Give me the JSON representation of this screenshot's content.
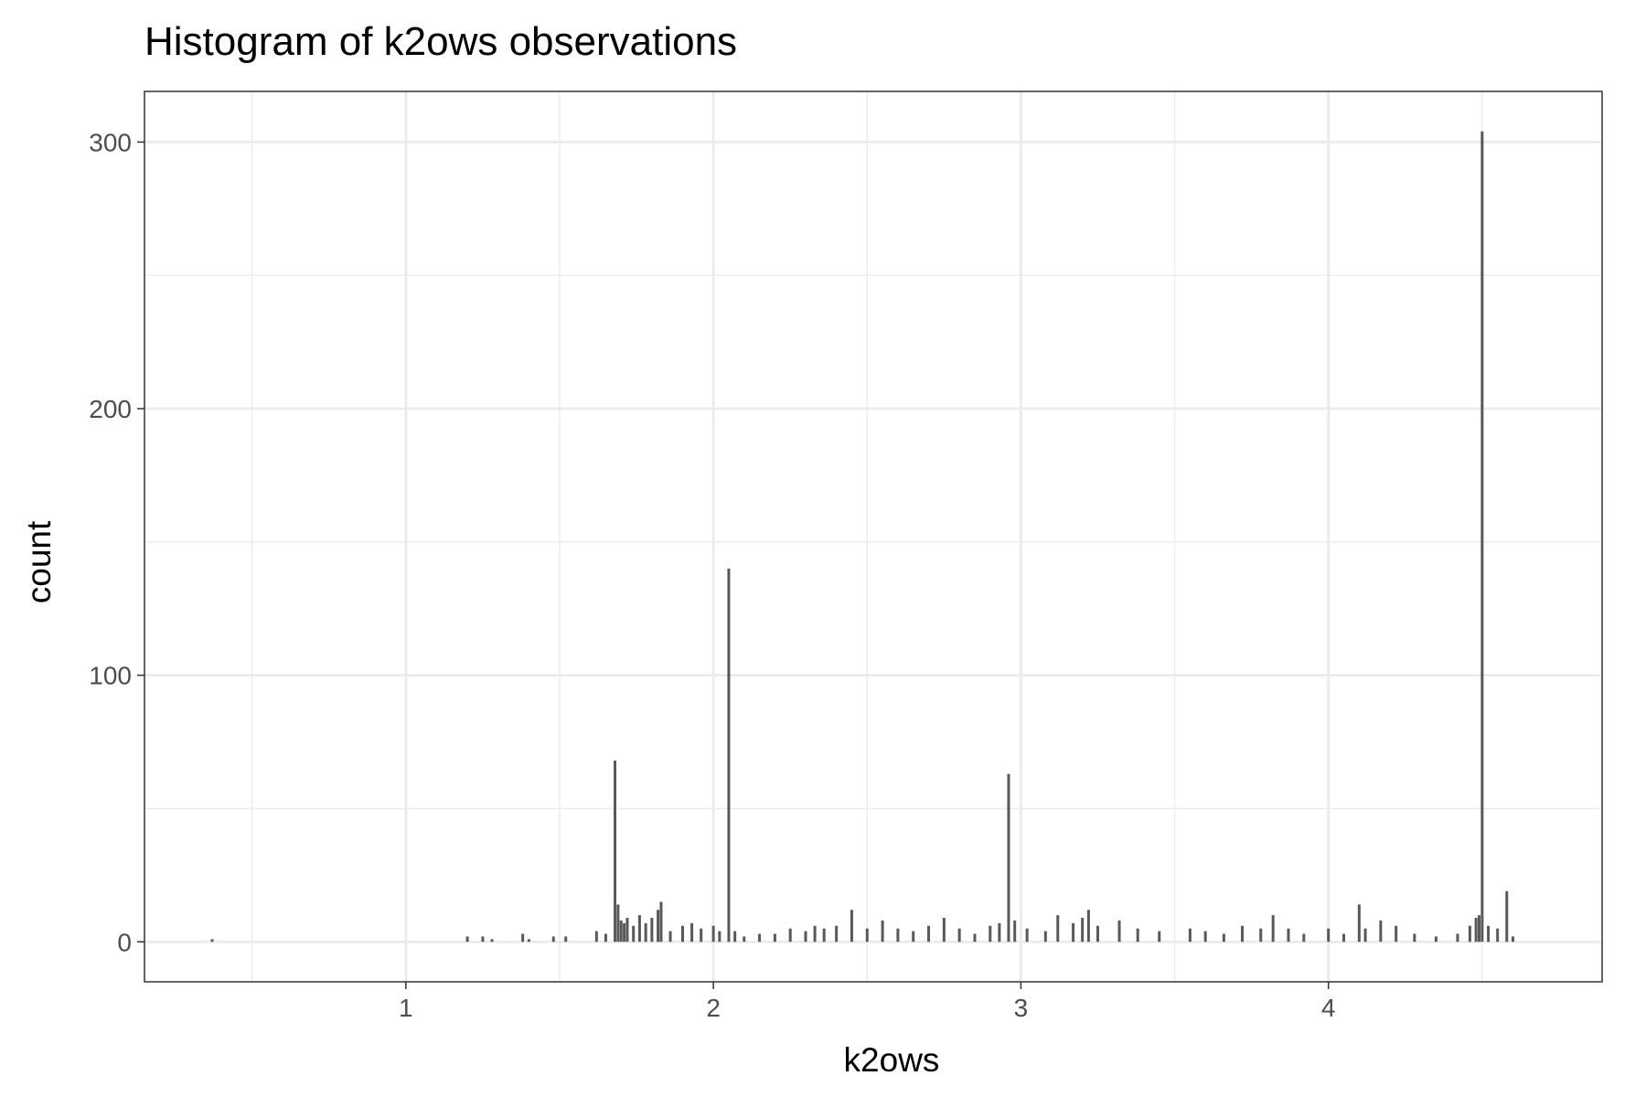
{
  "chart_data": {
    "type": "bar",
    "title": "Histogram of k2ows observations",
    "xlabel": "k2ows",
    "ylabel": "count",
    "xlim": [
      0.15,
      4.89
    ],
    "ylim": [
      -15,
      319
    ],
    "x_ticks": [
      1,
      2,
      3,
      4
    ],
    "x_tick_labels": [
      "1",
      "2",
      "3",
      "4"
    ],
    "y_ticks": [
      0,
      100,
      200,
      300
    ],
    "y_tick_labels": [
      "0",
      "100",
      "200",
      "300"
    ],
    "x_minor_ticks": [
      0.5,
      1.5,
      2.5,
      3.5,
      4.5
    ],
    "y_minor_ticks": [
      50,
      150,
      250
    ],
    "grid": true,
    "legend": "none",
    "bar_color": "#595959",
    "series": [
      {
        "x": [
          0.37,
          1.2,
          1.25,
          1.28,
          1.38,
          1.4,
          1.48,
          1.52,
          1.62,
          1.65,
          1.68,
          1.69,
          1.7,
          1.71,
          1.72,
          1.74,
          1.76,
          1.78,
          1.8,
          1.82,
          1.83,
          1.86,
          1.9,
          1.93,
          1.96,
          2.0,
          2.02,
          2.05,
          2.07,
          2.1,
          2.15,
          2.2,
          2.25,
          2.3,
          2.33,
          2.36,
          2.4,
          2.45,
          2.5,
          2.55,
          2.6,
          2.65,
          2.7,
          2.75,
          2.8,
          2.85,
          2.9,
          2.93,
          2.96,
          2.98,
          3.02,
          3.08,
          3.12,
          3.17,
          3.2,
          3.22,
          3.25,
          3.32,
          3.38,
          3.45,
          3.55,
          3.6,
          3.66,
          3.72,
          3.78,
          3.82,
          3.87,
          3.92,
          4.0,
          4.05,
          4.1,
          4.12,
          4.17,
          4.22,
          4.28,
          4.35,
          4.42,
          4.46,
          4.48,
          4.49,
          4.5,
          4.52,
          4.55,
          4.58,
          4.6
        ],
        "values": [
          1,
          2,
          2,
          1,
          3,
          1,
          2,
          2,
          4,
          3,
          68,
          14,
          8,
          7,
          9,
          6,
          10,
          7,
          9,
          12,
          15,
          4,
          6,
          7,
          5,
          6,
          4,
          140,
          4,
          2,
          3,
          3,
          5,
          4,
          6,
          5,
          6,
          12,
          5,
          8,
          5,
          4,
          6,
          9,
          5,
          3,
          6,
          7,
          63,
          8,
          5,
          4,
          10,
          7,
          9,
          12,
          6,
          8,
          5,
          4,
          5,
          4,
          3,
          6,
          5,
          10,
          5,
          3,
          5,
          3,
          14,
          5,
          8,
          6,
          3,
          2,
          3,
          6,
          9,
          10,
          304,
          6,
          5,
          19,
          2
        ]
      }
    ]
  }
}
